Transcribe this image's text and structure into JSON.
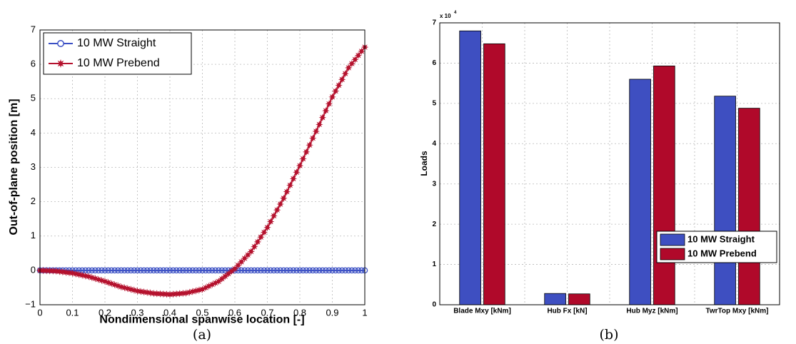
{
  "chart_data": [
    {
      "type": "line",
      "caption": "(a)",
      "xlabel": "Nondimensional spanwise location [-]",
      "ylabel": "Out-of-plane position [m]",
      "xlim": [
        0,
        1
      ],
      "ylim": [
        -1,
        7
      ],
      "xticks": [
        "0",
        "0.1",
        "0.2",
        "0.3",
        "0.4",
        "0.5",
        "0.6",
        "0.7",
        "0.8",
        "0.9",
        "1"
      ],
      "yticks": [
        "−1",
        "0",
        "1",
        "2",
        "3",
        "4",
        "5",
        "6",
        "7"
      ],
      "grid": true,
      "legend_position": "top-left",
      "series": [
        {
          "name": "10 MW Straight",
          "color": "#3a4fc4",
          "marker": "circle",
          "x": [
            0,
            0.1,
            0.2,
            0.3,
            0.4,
            0.5,
            0.6,
            0.7,
            0.8,
            0.9,
            1.0
          ],
          "y": [
            0,
            0,
            0,
            0,
            0,
            0,
            0,
            0,
            0,
            0,
            0
          ]
        },
        {
          "name": "10 MW Prebend",
          "color": "#b5122e",
          "marker": "star",
          "x": [
            0,
            0.05,
            0.1,
            0.15,
            0.2,
            0.25,
            0.3,
            0.35,
            0.4,
            0.45,
            0.5,
            0.55,
            0.6,
            0.65,
            0.7,
            0.75,
            0.8,
            0.85,
            0.9,
            0.95,
            1.0
          ],
          "y": [
            0,
            -0.02,
            -0.08,
            -0.18,
            -0.32,
            -0.48,
            -0.6,
            -0.67,
            -0.7,
            -0.66,
            -0.55,
            -0.32,
            0.05,
            0.55,
            1.25,
            2.1,
            3.05,
            4.05,
            5.05,
            5.9,
            6.5
          ]
        }
      ]
    },
    {
      "type": "bar",
      "caption": "(b)",
      "ylabel": "Loads",
      "y_multiplier": "x 10",
      "y_exponent": "4",
      "ylim": [
        0,
        70000
      ],
      "yticks": [
        "0",
        "1",
        "2",
        "3",
        "4",
        "5",
        "6",
        "7"
      ],
      "categories": [
        "Blade Mxy [kNm]",
        "Hub Fx [kN]",
        "Hub Myz [kNm]",
        "TwrTop Mxy [kNm]"
      ],
      "grid": true,
      "legend_position": "lower-right",
      "series": [
        {
          "name": "10 MW Straight",
          "color": "#3e4fc1",
          "values": [
            68000,
            2800,
            56000,
            51800
          ]
        },
        {
          "name": "10 MW Prebend",
          "color": "#b0092a",
          "values": [
            64800,
            2700,
            59300,
            48800
          ]
        }
      ]
    }
  ]
}
